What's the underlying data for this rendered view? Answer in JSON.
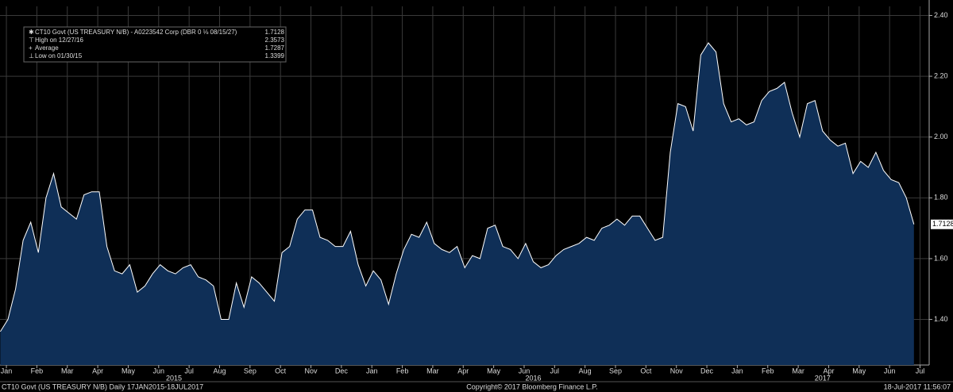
{
  "chart_data": {
    "type": "area",
    "legend": {
      "title": "CT10 Govt (US TREASURY N/B) - A0223542 Corp (DBR 0 ⅛ 08/15/27)",
      "last": 1.7128,
      "rows": [
        {
          "label": "High on 12/27/16",
          "value": 2.3573
        },
        {
          "label": "Average",
          "value": 1.7287
        },
        {
          "label": "Low on 01/30/15",
          "value": 1.3399
        }
      ]
    },
    "series": [
      {
        "name": "CT10 Govt (US TREASURY N/B)",
        "color": "#ffffff",
        "fill": "#0f2f57",
        "x": [
          -0.2,
          0.05,
          0.3,
          0.55,
          0.8,
          1.05,
          1.3,
          1.55,
          1.8,
          2.05,
          2.3,
          2.55,
          2.8,
          3.05,
          3.3,
          3.55,
          3.8,
          4.05,
          4.3,
          4.55,
          4.8,
          5.05,
          5.3,
          5.55,
          5.8,
          6.05,
          6.3,
          6.55,
          6.8,
          7.05,
          7.3,
          7.55,
          7.8,
          8.05,
          8.3,
          8.55,
          8.8,
          9.05,
          9.3,
          9.55,
          9.8,
          10.05,
          10.3,
          10.55,
          10.8,
          11.05,
          11.3,
          11.55,
          11.8,
          12.05,
          12.3,
          12.55,
          12.8,
          13.05,
          13.3,
          13.55,
          13.8,
          14.05,
          14.3,
          14.55,
          14.8,
          15.05,
          15.3,
          15.55,
          15.8,
          16.05,
          16.3,
          16.55,
          16.8,
          17.05,
          17.3,
          17.55,
          17.8,
          18.05,
          18.3,
          18.55,
          18.8,
          19.05,
          19.3,
          19.55,
          19.8,
          20.05,
          20.3,
          20.55,
          20.8,
          21.05,
          21.3,
          21.55,
          21.8,
          22.05,
          22.3,
          22.55,
          22.8,
          23.05,
          23.3,
          23.55,
          23.8,
          24.05,
          24.3,
          24.55,
          24.8,
          25.05,
          25.3,
          25.55,
          25.8,
          26.05,
          26.3,
          26.55,
          26.8,
          27.05,
          27.3,
          27.55,
          27.8,
          28.05,
          28.3,
          28.55,
          28.8,
          29.05,
          29.3,
          29.55,
          29.8
        ],
        "values": [
          1.36,
          1.4,
          1.5,
          1.66,
          1.72,
          1.62,
          1.8,
          1.88,
          1.77,
          1.75,
          1.73,
          1.81,
          1.82,
          1.82,
          1.64,
          1.56,
          1.55,
          1.58,
          1.49,
          1.51,
          1.55,
          1.58,
          1.56,
          1.55,
          1.57,
          1.58,
          1.54,
          1.53,
          1.51,
          1.4,
          1.4,
          1.52,
          1.44,
          1.54,
          1.52,
          1.49,
          1.46,
          1.62,
          1.64,
          1.73,
          1.76,
          1.76,
          1.67,
          1.66,
          1.64,
          1.64,
          1.69,
          1.58,
          1.51,
          1.56,
          1.53,
          1.45,
          1.55,
          1.63,
          1.68,
          1.67,
          1.72,
          1.65,
          1.63,
          1.62,
          1.64,
          1.57,
          1.61,
          1.6,
          1.7,
          1.71,
          1.64,
          1.63,
          1.6,
          1.65,
          1.59,
          1.57,
          1.58,
          1.61,
          1.63,
          1.64,
          1.65,
          1.67,
          1.66,
          1.7,
          1.71,
          1.73,
          1.71,
          1.74,
          1.74,
          1.7,
          1.66,
          1.67,
          1.95,
          2.11,
          2.1,
          2.02,
          2.27,
          2.31,
          2.28,
          2.11,
          2.05,
          2.06,
          2.04,
          2.05,
          2.12,
          2.15,
          2.16,
          2.18,
          2.08,
          2.0,
          2.11,
          2.12,
          2.02,
          1.99,
          1.97,
          1.98,
          1.88,
          1.92,
          1.9,
          1.95,
          1.89,
          1.86,
          1.85,
          1.8,
          1.7128
        ]
      }
    ],
    "xlim": [
      -0.21,
      30.3
    ],
    "ylim": [
      1.25,
      2.43
    ],
    "xticks": [
      {
        "value": 0,
        "label": "Jan"
      },
      {
        "value": 1,
        "label": "Feb"
      },
      {
        "value": 2,
        "label": "Mar"
      },
      {
        "value": 3,
        "label": "Apr"
      },
      {
        "value": 4,
        "label": "May"
      },
      {
        "value": 5,
        "label": "Jun"
      },
      {
        "value": 6,
        "label": "Jul"
      },
      {
        "value": 7,
        "label": "Aug"
      },
      {
        "value": 8,
        "label": "Sep"
      },
      {
        "value": 9,
        "label": "Oct"
      },
      {
        "value": 10,
        "label": "Nov"
      },
      {
        "value": 11,
        "label": "Dec"
      },
      {
        "value": 12,
        "label": "Jan"
      },
      {
        "value": 13,
        "label": "Feb"
      },
      {
        "value": 14,
        "label": "Mar"
      },
      {
        "value": 15,
        "label": "Apr"
      },
      {
        "value": 16,
        "label": "May"
      },
      {
        "value": 17,
        "label": "Jun"
      },
      {
        "value": 18,
        "label": "Jul"
      },
      {
        "value": 19,
        "label": "Aug"
      },
      {
        "value": 20,
        "label": "Sep"
      },
      {
        "value": 21,
        "label": "Oct"
      },
      {
        "value": 22,
        "label": "Nov"
      },
      {
        "value": 23,
        "label": "Dec"
      },
      {
        "value": 24,
        "label": "Jan"
      },
      {
        "value": 25,
        "label": "Feb"
      },
      {
        "value": 26,
        "label": "Mar"
      },
      {
        "value": 27,
        "label": "Apr"
      },
      {
        "value": 28,
        "label": "May"
      },
      {
        "value": 29,
        "label": "Jun"
      },
      {
        "value": 30,
        "label": "Jul"
      }
    ],
    "year_ticks": [
      {
        "value": 5.5,
        "label": "2015"
      },
      {
        "value": 17.3,
        "label": "2016"
      },
      {
        "value": 26.8,
        "label": "2017"
      }
    ],
    "yticks": [
      {
        "value": 1.4,
        "label": "1.40"
      },
      {
        "value": 1.6,
        "label": "1.60"
      },
      {
        "value": 1.8,
        "label": "1.80"
      },
      {
        "value": 2.0,
        "label": "2.00"
      },
      {
        "value": 2.2,
        "label": "2.20"
      },
      {
        "value": 2.4,
        "label": "2.40"
      }
    ],
    "grid": true,
    "footer": {
      "left": "CT10 Govt (US TREASURY N/B)  Daily 17JAN2015-18JUL2017",
      "center": "Copyright© 2017 Bloomberg Finance L.P.",
      "right": "18-Jul-2017 11:56:07"
    }
  }
}
